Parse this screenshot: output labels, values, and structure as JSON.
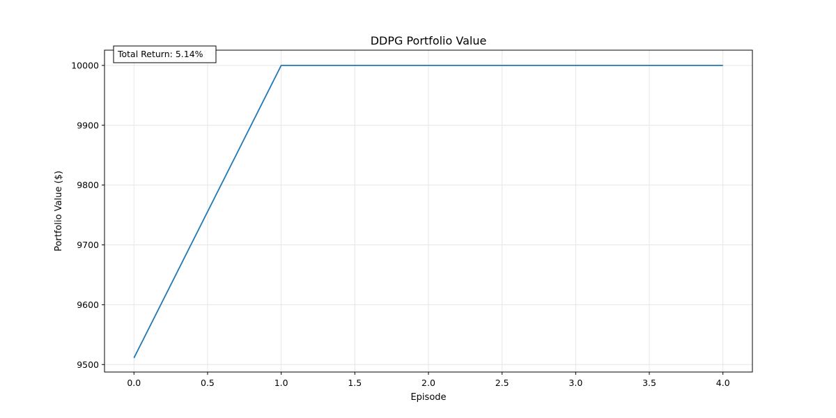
{
  "chart_data": {
    "type": "line",
    "title": "DDPG Portfolio Value",
    "xlabel": "Episode",
    "ylabel": "Portfolio Value ($)",
    "x": [
      0,
      1,
      2,
      3,
      4
    ],
    "series": [
      {
        "name": "Portfolio Value",
        "values": [
          9511,
          10000,
          10000,
          10000,
          10000
        ],
        "color": "#1f77b4"
      }
    ],
    "xlim": [
      -0.2,
      4.2
    ],
    "ylim": [
      9487.5,
      10025.5
    ],
    "xticks": [
      0.0,
      0.5,
      1.0,
      1.5,
      2.0,
      2.5,
      3.0,
      3.5,
      4.0
    ],
    "xtick_labels": [
      "0.0",
      "0.5",
      "1.0",
      "1.5",
      "2.0",
      "2.5",
      "3.0",
      "3.5",
      "4.0"
    ],
    "yticks": [
      9500,
      9600,
      9700,
      9800,
      9900,
      10000
    ],
    "ytick_labels": [
      "9500",
      "9600",
      "9700",
      "9800",
      "9900",
      "10000"
    ],
    "grid": true,
    "annotation": {
      "text": "Total Return: 5.14%",
      "placement": "top-left"
    }
  }
}
